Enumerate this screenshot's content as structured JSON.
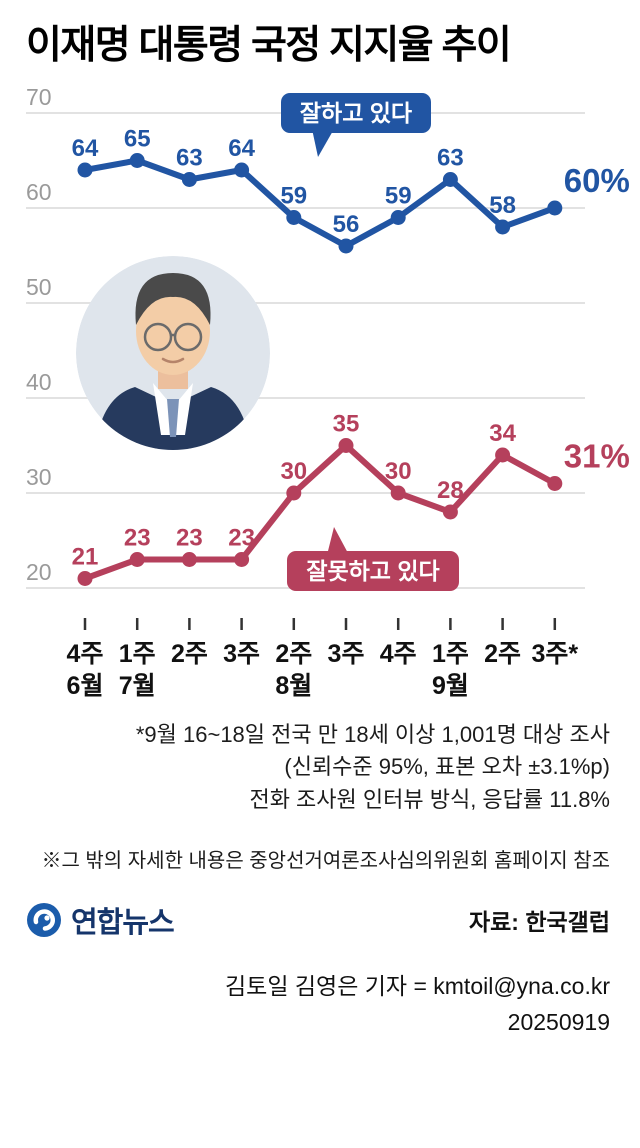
{
  "header": {
    "title": "이재명 대통령 국정 지지율 추이"
  },
  "chart_data": {
    "type": "line",
    "title": "이재명 대통령 국정 지지율 추이",
    "categories": [
      "4주",
      "1주",
      "2주",
      "3주",
      "2주",
      "3주",
      "4주",
      "1주",
      "2주",
      "3주*"
    ],
    "month_labels": [
      {
        "index": 0,
        "label": "6월"
      },
      {
        "index": 1,
        "label": "7월"
      },
      {
        "index": 4,
        "label": "8월"
      },
      {
        "index": 7,
        "label": "9월"
      }
    ],
    "series": [
      {
        "name": "잘하고 있다",
        "color": "#2155a3",
        "values": [
          64,
          65,
          63,
          64,
          59,
          56,
          59,
          63,
          58,
          60
        ],
        "last_label": "60%"
      },
      {
        "name": "잘못하고 있다",
        "color": "#b5405c",
        "values": [
          21,
          23,
          23,
          23,
          30,
          35,
          30,
          28,
          34,
          31
        ],
        "last_label": "31%"
      }
    ],
    "yticks": [
      70,
      60,
      50,
      40,
      30,
      20
    ],
    "ylim": [
      20,
      70
    ],
    "grid": true,
    "legend_position": "callouts-on-plot",
    "xlabel": "",
    "ylabel": ""
  },
  "footnotes": {
    "line1": "*9월 16~18일 전국 만 18세 이상 1,001명 대상 조사",
    "line2": "(신뢰수준 95%, 표본 오차 ±3.1%p)",
    "line3": "전화 조사원 인터뷰 방식, 응답률 11.8%",
    "reference": "※그 밖의 자세한 내용은 중앙선거여론조사심의위원회 홈페이지 참조"
  },
  "footer": {
    "logo": "연합뉴스",
    "source": "자료: 한국갤럽",
    "byline": "김토일 김영은 기자 = kmtoil@yna.co.kr",
    "date": "20250919"
  }
}
